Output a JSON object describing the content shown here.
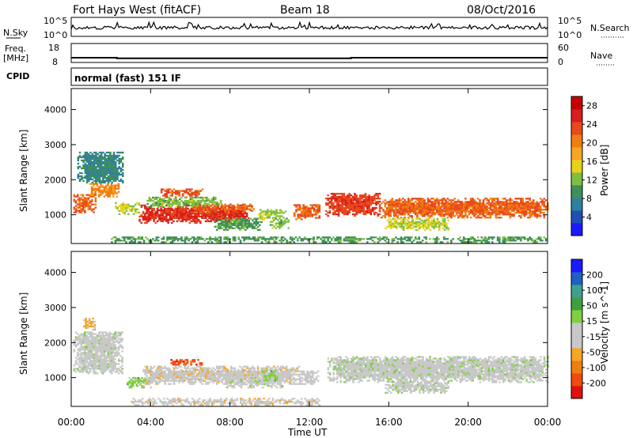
{
  "header": {
    "station": "Fort Hays West (fitACF)",
    "beam": "Beam 18",
    "date": "08/Oct/2016"
  },
  "panels": {
    "nsky": {
      "label": "N.Sky",
      "ticks": [
        "10^5",
        "10^0"
      ],
      "right_label": "N.Search",
      "right_ticks": [
        "10^5",
        "10^0"
      ]
    },
    "freq": {
      "label_top": "Freq.",
      "label_unit": "[MHz]",
      "ticks": [
        "18",
        "8"
      ],
      "right_label": "Nave",
      "right_ticks": [
        "60",
        "0"
      ]
    },
    "cpid": {
      "label": "CPID",
      "mode_text": "normal (fast) 151 IF"
    }
  },
  "time_axis": {
    "label": "Time UT",
    "ticks": [
      "00:00",
      "04:00",
      "08:00",
      "12:00",
      "16:00",
      "20:00",
      "00:00"
    ]
  },
  "chart_data": [
    {
      "type": "heatmap",
      "title": "",
      "xlabel": "Time UT",
      "ylabel": "Slant Range [km]",
      "xlim": [
        0,
        24
      ],
      "ylim": [
        180,
        4600
      ],
      "y_ticks": [
        "1000",
        "2000",
        "3000",
        "4000"
      ],
      "colorbar": {
        "label": "Power [dB]",
        "ticks": [
          "4",
          "8",
          "12",
          "16",
          "20",
          "24",
          "28"
        ],
        "range": [
          0,
          30
        ],
        "colors": [
          "#1a1aff",
          "#1f4fb4",
          "#2f7f9f",
          "#3f8f5a",
          "#7fbf3f",
          "#e8d21a",
          "#f5a623",
          "#f07d10",
          "#e8491d",
          "#d81e1e",
          "#c80000"
        ]
      },
      "regions": [
        {
          "t0": 0.1,
          "t1": 1.2,
          "r0": 1050,
          "r1": 1550,
          "level": 22
        },
        {
          "t0": 0.9,
          "t1": 2.4,
          "r0": 1500,
          "r1": 1900,
          "level": 20
        },
        {
          "t0": 0.3,
          "t1": 2.6,
          "r0": 1900,
          "r1": 2800,
          "level": 8
        },
        {
          "t0": 2.2,
          "t1": 3.4,
          "r0": 1000,
          "r1": 1350,
          "level": 14
        },
        {
          "t0": 3.4,
          "t1": 9.0,
          "r0": 750,
          "r1": 1250,
          "level": 25
        },
        {
          "t0": 3.8,
          "t1": 7.5,
          "r0": 1200,
          "r1": 1500,
          "level": 12
        },
        {
          "t0": 4.5,
          "t1": 6.6,
          "r0": 1480,
          "r1": 1720,
          "level": 23
        },
        {
          "t0": 6.0,
          "t1": 9.2,
          "r0": 1050,
          "r1": 1300,
          "level": 22
        },
        {
          "t0": 7.2,
          "t1": 9.6,
          "r0": 550,
          "r1": 900,
          "level": 10
        },
        {
          "t0": 9.4,
          "t1": 10.8,
          "r0": 850,
          "r1": 1150,
          "level": 13
        },
        {
          "t0": 10.0,
          "t1": 10.9,
          "r0": 600,
          "r1": 900,
          "level": 12
        },
        {
          "t0": 11.2,
          "t1": 12.5,
          "r0": 850,
          "r1": 1300,
          "level": 22
        },
        {
          "t0": 12.8,
          "t1": 15.5,
          "r0": 950,
          "r1": 1600,
          "level": 24
        },
        {
          "t0": 15.5,
          "t1": 24.0,
          "r0": 900,
          "r1": 1450,
          "level": 22
        },
        {
          "t0": 15.8,
          "t1": 19.0,
          "r0": 550,
          "r1": 900,
          "level": 14
        },
        {
          "t0": 2.0,
          "t1": 24.0,
          "r0": 200,
          "r1": 380,
          "level": 10
        }
      ]
    },
    {
      "type": "heatmap",
      "title": "",
      "xlabel": "Time UT",
      "ylabel": "Slant Range [km]",
      "xlim": [
        0,
        24
      ],
      "ylim": [
        180,
        4600
      ],
      "y_ticks": [
        "1000",
        "2000",
        "3000",
        "4000"
      ],
      "colorbar": {
        "label": "Velocity [m s^-1]",
        "ticks": [
          "200",
          "100",
          "50",
          "15",
          "-15",
          "-50",
          "-100",
          "-200"
        ],
        "range": [
          -250,
          250
        ],
        "colors": [
          "#e01010",
          "#f04a10",
          "#f07d10",
          "#f5a623",
          "#c8c8c8",
          "#c8c8c8",
          "#7fd03f",
          "#3f9f3f",
          "#3fa08f",
          "#1f60c0",
          "#1a1aff"
        ]
      },
      "regions": [
        {
          "t0": 0.1,
          "t1": 2.6,
          "r0": 1100,
          "r1": 2300,
          "level": 0
        },
        {
          "t0": 0.6,
          "t1": 1.2,
          "r0": 2350,
          "r1": 2700,
          "level": -80
        },
        {
          "t0": 2.8,
          "t1": 4.0,
          "r0": 700,
          "r1": 1000,
          "level": 40
        },
        {
          "t0": 3.6,
          "t1": 11.5,
          "r0": 800,
          "r1": 1300,
          "level": -45
        },
        {
          "t0": 5.0,
          "t1": 6.6,
          "r0": 1350,
          "r1": 1500,
          "level": -180
        },
        {
          "t0": 7.8,
          "t1": 10.6,
          "r0": 700,
          "r1": 1000,
          "level": 0
        },
        {
          "t0": 9.6,
          "t1": 10.4,
          "r0": 900,
          "r1": 1200,
          "level": 40
        },
        {
          "t0": 11.4,
          "t1": 12.4,
          "r0": 800,
          "r1": 1200,
          "level": -30
        },
        {
          "t0": 12.9,
          "t1": 24.0,
          "r0": 850,
          "r1": 1600,
          "level": 0
        },
        {
          "t0": 15.8,
          "t1": 19.0,
          "r0": 550,
          "r1": 900,
          "level": 0
        },
        {
          "t0": 3.0,
          "t1": 12.5,
          "r0": 200,
          "r1": 400,
          "level": -45
        }
      ]
    },
    {
      "type": "line",
      "title": "",
      "xlabel": "Time UT",
      "ylabel": "Freq. [MHz]",
      "xlim": [
        0,
        24
      ],
      "ylim": [
        8,
        18
      ],
      "series": [
        {
          "name": "",
          "x": [
            0,
            2.3,
            2.3,
            14.1,
            14.1,
            24
          ],
          "values": [
            10.5,
            10.5,
            10.2,
            10.2,
            10.5,
            10.5
          ]
        }
      ]
    }
  ]
}
